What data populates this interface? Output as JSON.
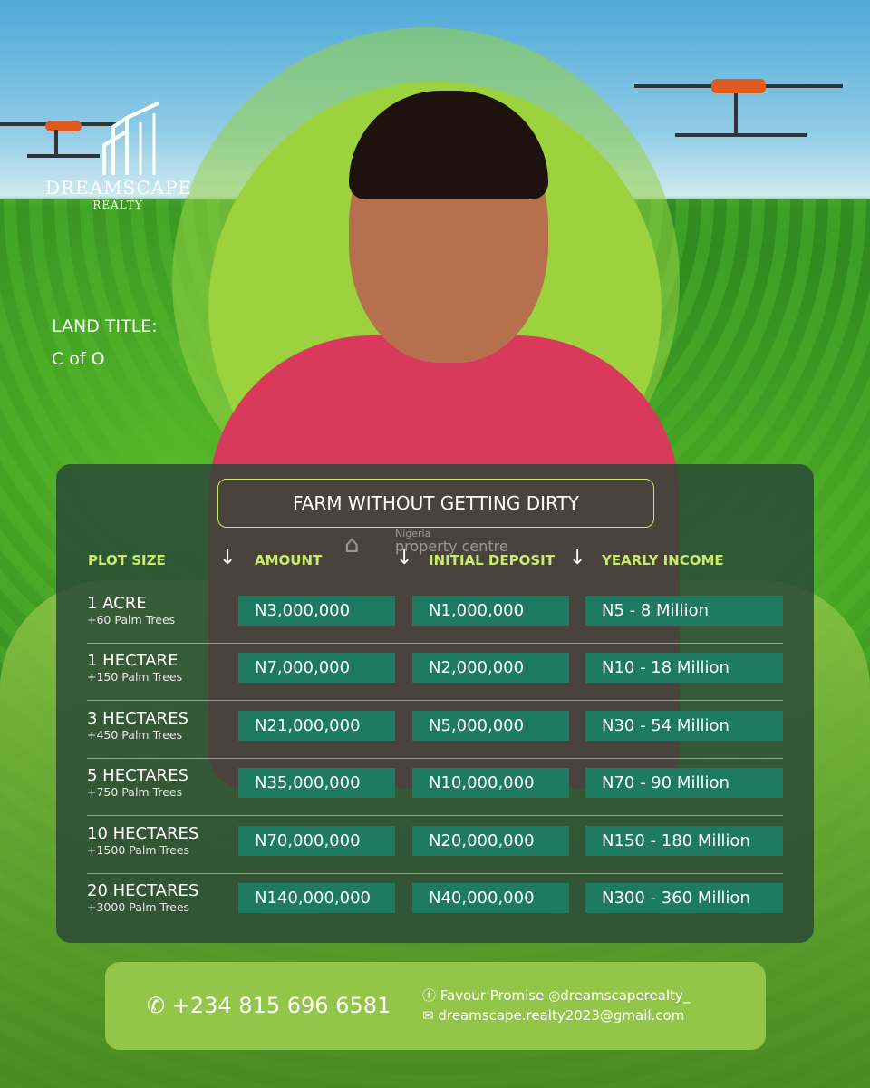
{
  "brand": {
    "name": "DREAMSCAPE",
    "sub": "REALTY"
  },
  "land_title": {
    "label": "LAND TITLE:",
    "value": "C of O"
  },
  "headline": "FARM WITHOUT GETTING DIRTY",
  "watermark": {
    "line1": "Nigeria",
    "line2": "property centre"
  },
  "table": {
    "headers": [
      "PLOT SIZE",
      "AMOUNT",
      "INITIAL DEPOSIT",
      "YEARLY INCOME"
    ],
    "rows": [
      {
        "plot": "1 ACRE",
        "trees": "+60 Palm Trees",
        "amount": "N3,000,000",
        "deposit": "N1,000,000",
        "income": "N5 - 8 Million"
      },
      {
        "plot": "1 HECTARE",
        "trees": "+150 Palm Trees",
        "amount": "N7,000,000",
        "deposit": "N2,000,000",
        "income": "N10 - 18 Million"
      },
      {
        "plot": "3 HECTARES",
        "trees": "+450 Palm Trees",
        "amount": "N21,000,000",
        "deposit": "N5,000,000",
        "income": "N30 - 54 Million"
      },
      {
        "plot": "5 HECTARES",
        "trees": "+750 Palm Trees",
        "amount": "N35,000,000",
        "deposit": "N10,000,000",
        "income": "N70 - 90 Million"
      },
      {
        "plot": "10 HECTARES",
        "trees": "+1500 Palm Trees",
        "amount": "N70,000,000",
        "deposit": "N20,000,000",
        "income": "N150 - 180 Million"
      },
      {
        "plot": "20 HECTARES",
        "trees": "+3000 Palm Trees",
        "amount": "N140,000,000",
        "deposit": "N40,000,000",
        "income": "N300 - 360 Million"
      }
    ]
  },
  "footer": {
    "phone": "+234 815 696 6581",
    "facebook": "Favour Promise",
    "instagram": "dreamscaperealty_",
    "email": "dreamscape.realty2023@gmail.com"
  },
  "colors": {
    "header_text": "#c9ea6e",
    "cell_bg": "#1f7a62",
    "footer_bg": "#93c548",
    "panel_bg": "#28463a"
  }
}
